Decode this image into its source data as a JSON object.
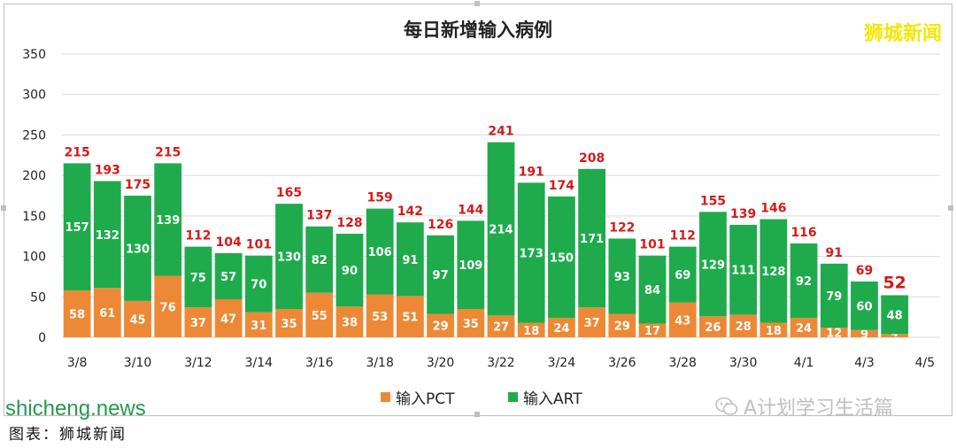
{
  "title": "每日新增输入病例",
  "brand": "狮城新闻",
  "legend": {
    "pct_label": "输入PCT",
    "art_label": "输入ART"
  },
  "colors": {
    "pct": "#ed8936",
    "art": "#1fab4c",
    "total_label": "#d11b1b",
    "grid": "#d9d9d9",
    "brand": "#f5e600"
  },
  "wechat_label": "A计划学习生活篇",
  "watermark": "shicheng.news",
  "footer_text": "图表：狮城新闻",
  "chart_data": {
    "type": "bar",
    "stacked": true,
    "title": "每日新增输入病例",
    "categories": [
      "3/8",
      "3/9",
      "3/10",
      "3/11",
      "3/12",
      "3/13",
      "3/14",
      "3/15",
      "3/16",
      "3/17",
      "3/18",
      "3/19",
      "3/20",
      "3/21",
      "3/22",
      "3/23",
      "3/24",
      "3/25",
      "3/26",
      "3/27",
      "3/28",
      "3/29",
      "3/30",
      "3/31",
      "4/1",
      "4/2",
      "4/3",
      "4/4",
      "4/5"
    ],
    "tick_labels": [
      "3/8",
      "",
      "3/10",
      "",
      "3/12",
      "",
      "3/14",
      "",
      "3/16",
      "",
      "3/18",
      "",
      "3/20",
      "",
      "3/22",
      "",
      "3/24",
      "",
      "3/26",
      "",
      "3/28",
      "",
      "3/30",
      "",
      "4/1",
      "",
      "4/3",
      "",
      "4/5"
    ],
    "series": [
      {
        "name": "输入PCT",
        "values": [
          58,
          61,
          45,
          76,
          37,
          47,
          31,
          35,
          55,
          38,
          53,
          51,
          29,
          35,
          27,
          18,
          24,
          37,
          29,
          17,
          43,
          26,
          28,
          18,
          24,
          12,
          9,
          4,
          null
        ]
      },
      {
        "name": "输入ART",
        "values": [
          157,
          132,
          130,
          139,
          75,
          57,
          70,
          130,
          82,
          90,
          106,
          91,
          97,
          109,
          214,
          173,
          150,
          171,
          93,
          84,
          69,
          129,
          111,
          128,
          92,
          79,
          60,
          48,
          null
        ]
      }
    ],
    "totals": [
      215,
      193,
      175,
      215,
      112,
      104,
      101,
      165,
      137,
      128,
      159,
      142,
      126,
      144,
      241,
      191,
      174,
      208,
      122,
      101,
      112,
      155,
      139,
      146,
      116,
      91,
      69,
      52,
      null
    ],
    "ylim": [
      0,
      350
    ],
    "yticks": [
      0,
      50,
      100,
      150,
      200,
      250,
      300,
      350
    ],
    "grid": true,
    "legend_position": "bottom"
  }
}
